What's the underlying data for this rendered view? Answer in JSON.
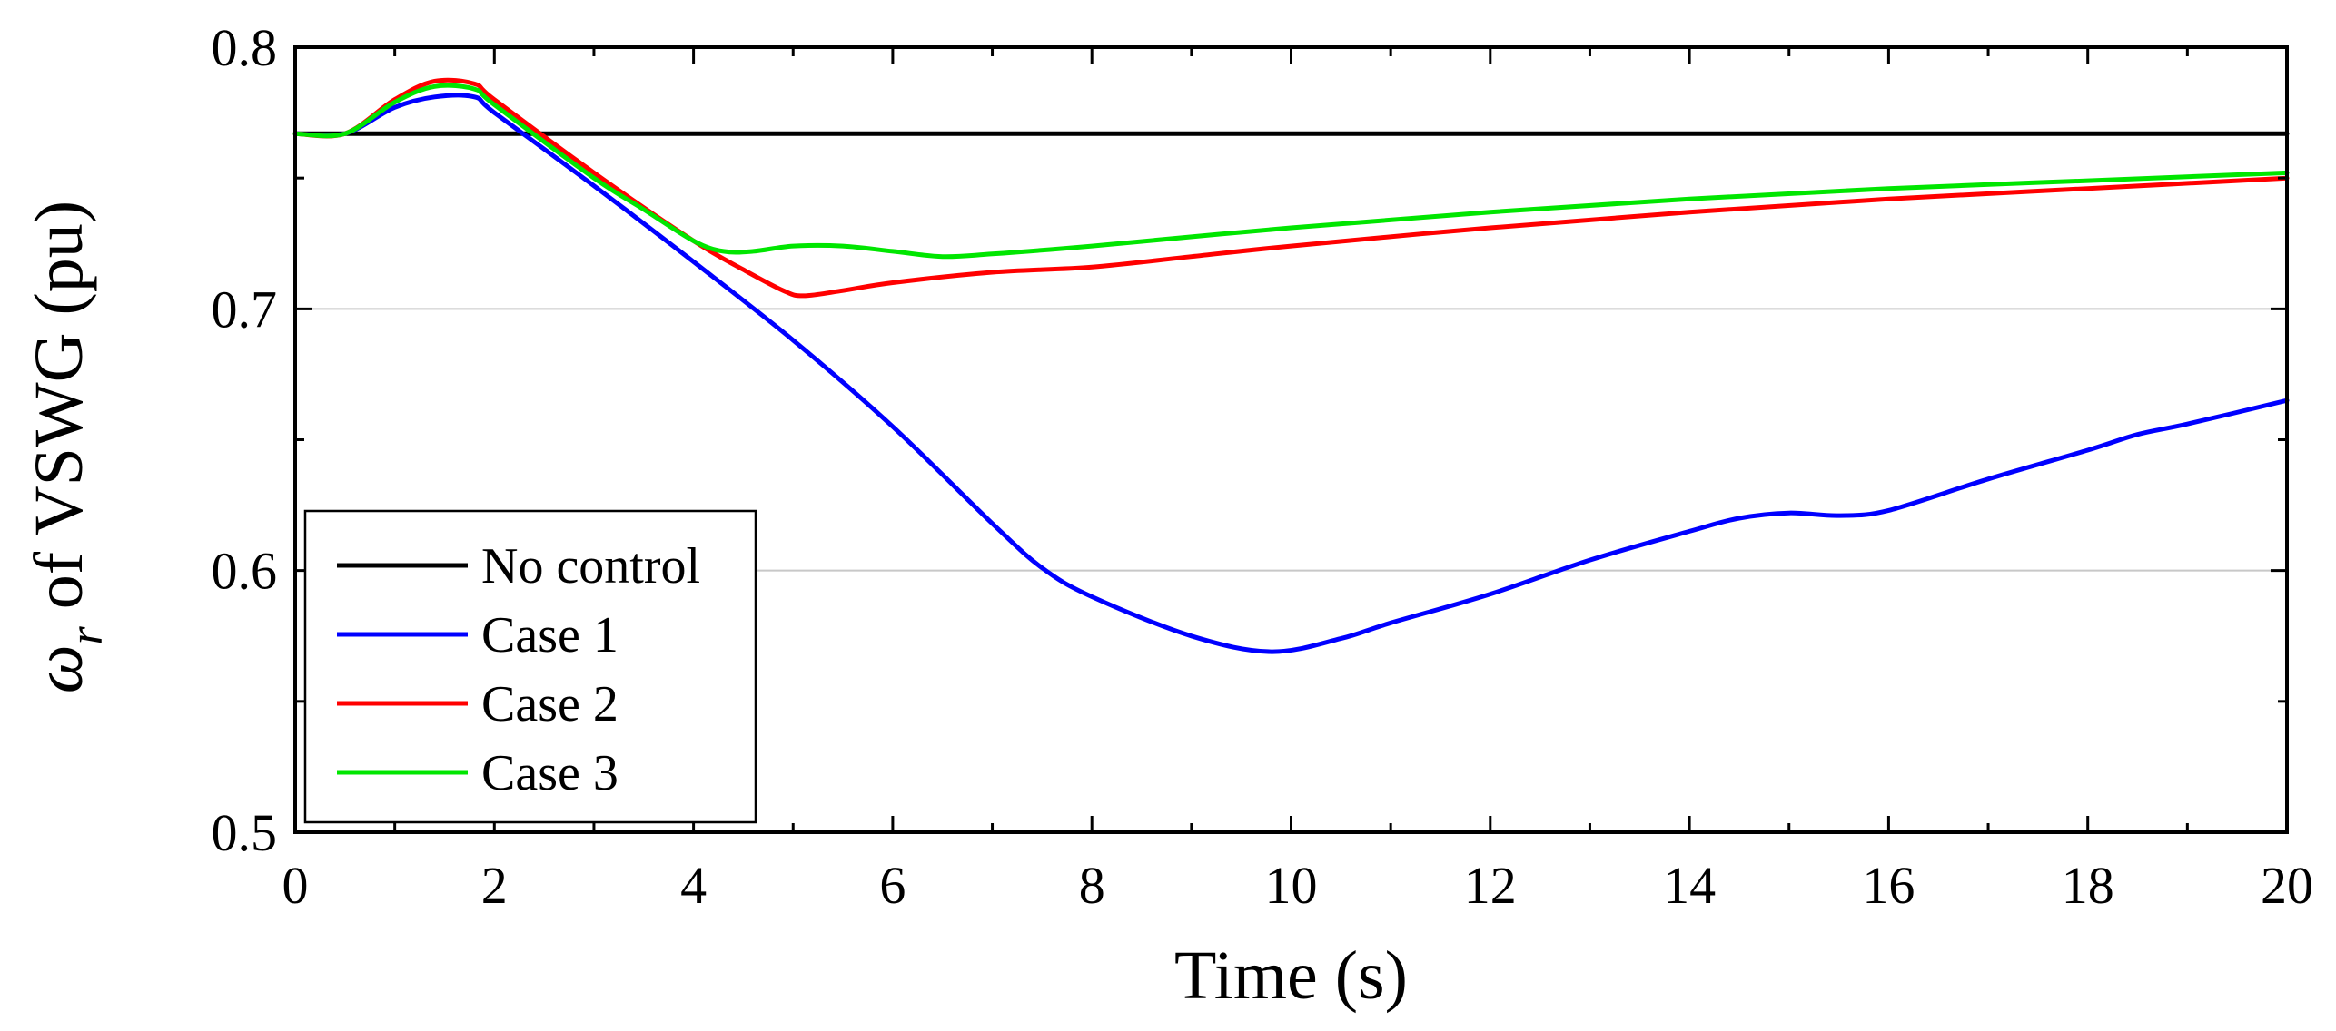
{
  "chart_data": {
    "type": "line",
    "title": "",
    "xlabel": "Time (s)",
    "ylabel": {
      "symbol": "ω",
      "subscript": "r",
      "text": " of VSWG (pu)"
    },
    "xlim": [
      0,
      20
    ],
    "ylim": [
      0.5,
      0.8
    ],
    "xticks": [
      0,
      2,
      4,
      6,
      8,
      10,
      12,
      14,
      16,
      18,
      20
    ],
    "xtick_labels": [
      "0",
      "2",
      "4",
      "6",
      "8",
      "10",
      "12",
      "14",
      "16",
      "18",
      "20"
    ],
    "yticks": [
      0.5,
      0.6,
      0.7,
      0.8
    ],
    "ytick_labels": [
      "0.5",
      "0.6",
      "0.7",
      "0.8"
    ],
    "grid": "horizontal",
    "legend_position": "bottom-left",
    "series": [
      {
        "name": "No control",
        "color": "#000000",
        "x": [
          0,
          20
        ],
        "y": [
          0.767,
          0.767
        ]
      },
      {
        "name": "Case 1",
        "color": "#0000ff",
        "x": [
          0,
          0.5,
          1.0,
          1.4,
          1.8,
          2.0,
          3.0,
          4.0,
          5.0,
          6.0,
          7.0,
          7.5,
          8.0,
          9.0,
          9.8,
          10.5,
          11.0,
          12.0,
          13.0,
          14.0,
          14.5,
          15.0,
          15.5,
          16.0,
          17.0,
          18.0,
          18.5,
          19.0,
          20.0
        ],
        "y": [
          0.767,
          0.767,
          0.777,
          0.781,
          0.781,
          0.775,
          0.747,
          0.718,
          0.688,
          0.655,
          0.618,
          0.601,
          0.59,
          0.575,
          0.569,
          0.574,
          0.58,
          0.591,
          0.604,
          0.615,
          0.62,
          0.622,
          0.621,
          0.623,
          0.635,
          0.646,
          0.652,
          0.656,
          0.665
        ]
      },
      {
        "name": "Case 2",
        "color": "#ff0000",
        "x": [
          0,
          0.5,
          1.0,
          1.4,
          1.8,
          2.0,
          3.0,
          4.0,
          4.5,
          4.9,
          5.1,
          5.5,
          6.0,
          7.0,
          8.0,
          9.0,
          10.0,
          12.0,
          14.0,
          16.0,
          18.0,
          20.0
        ],
        "y": [
          0.767,
          0.767,
          0.78,
          0.787,
          0.786,
          0.78,
          0.752,
          0.726,
          0.715,
          0.707,
          0.705,
          0.707,
          0.71,
          0.714,
          0.716,
          0.72,
          0.724,
          0.731,
          0.737,
          0.742,
          0.746,
          0.75
        ]
      },
      {
        "name": "Case 3",
        "color": "#00e600",
        "x": [
          0,
          0.5,
          1.0,
          1.4,
          1.8,
          2.0,
          3.0,
          3.5,
          4.0,
          4.3,
          4.6,
          5.0,
          5.5,
          6.0,
          6.5,
          7.0,
          8.0,
          10.0,
          12.0,
          14.0,
          16.0,
          18.0,
          20.0
        ],
        "y": [
          0.767,
          0.767,
          0.779,
          0.785,
          0.784,
          0.778,
          0.75,
          0.738,
          0.726,
          0.722,
          0.722,
          0.724,
          0.724,
          0.722,
          0.72,
          0.721,
          0.724,
          0.731,
          0.737,
          0.742,
          0.746,
          0.749,
          0.752
        ]
      }
    ]
  }
}
